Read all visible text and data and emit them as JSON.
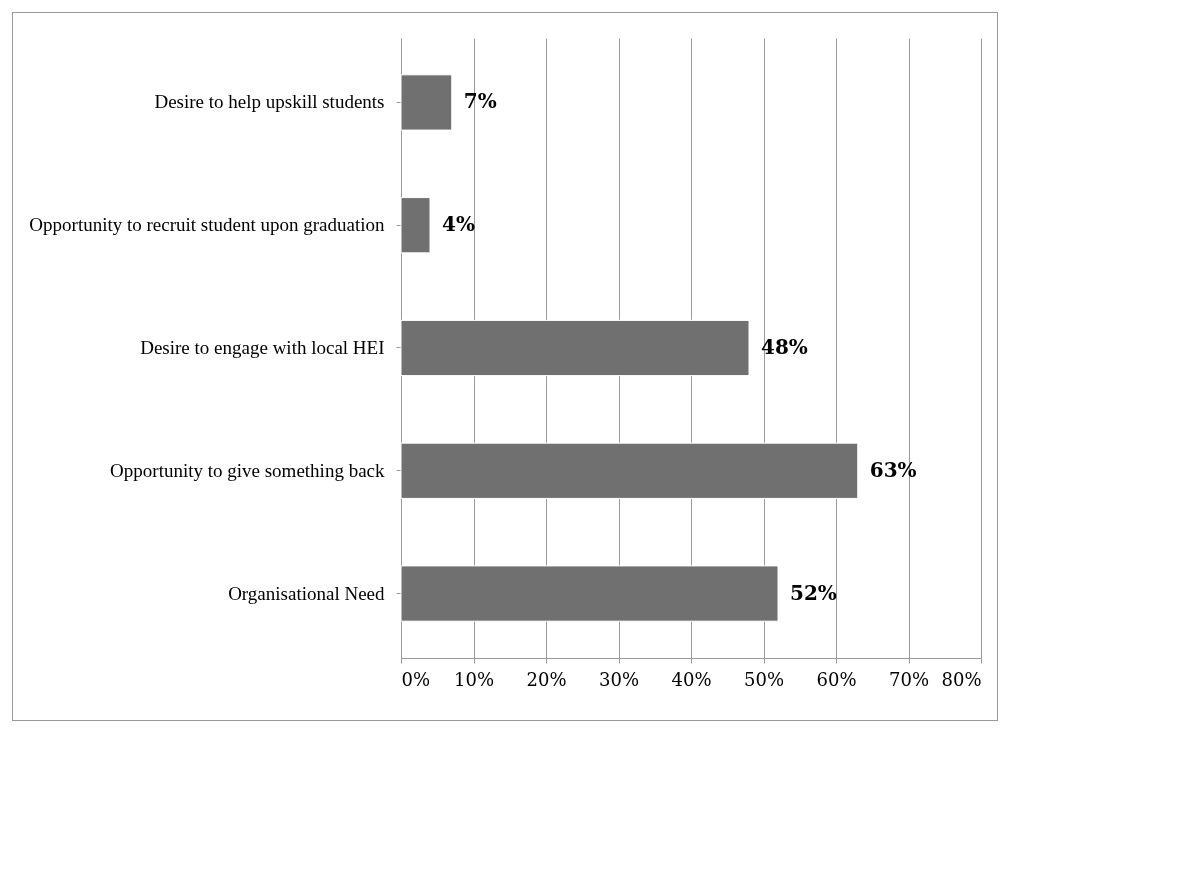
{
  "chart_data": {
    "type": "bar",
    "orientation": "horizontal",
    "categories": [
      "Desire to help upskill students",
      "Opportunity to recruit student upon graduation",
      "Desire to engage with local HEI",
      "Opportunity to give something back",
      "Organisational Need"
    ],
    "values": [
      7,
      4,
      48,
      63,
      52
    ],
    "value_labels": [
      "7%",
      "4%",
      "48%",
      "63%",
      "52%"
    ],
    "color": "#707070",
    "xlim": [
      0,
      80
    ],
    "xticks": [
      {
        "value": 0,
        "label": "0%"
      },
      {
        "value": 10,
        "label": "10%"
      },
      {
        "value": 20,
        "label": "20%"
      },
      {
        "value": 30,
        "label": "30%"
      },
      {
        "value": 40,
        "label": "40%"
      },
      {
        "value": 50,
        "label": "50%"
      },
      {
        "value": 60,
        "label": "60%"
      },
      {
        "value": 70,
        "label": "70%"
      },
      {
        "value": 80,
        "label": "80%"
      }
    ],
    "grid": "x"
  }
}
